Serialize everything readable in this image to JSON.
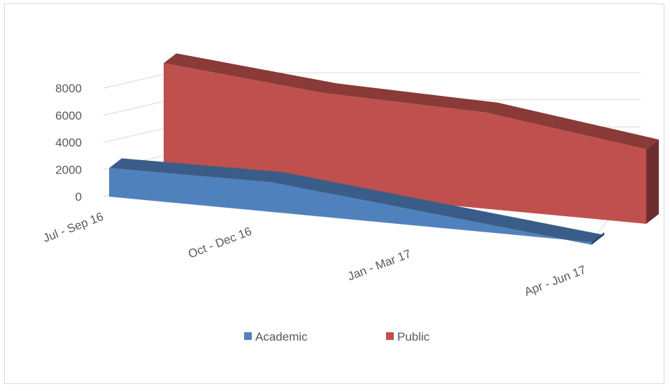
{
  "chart_data": {
    "type": "area",
    "view": "3d",
    "categories": [
      "Jul - Sep 16",
      "Oct - Dec 16",
      "Jan - Mar 17",
      "Apr - Jun 17"
    ],
    "series": [
      {
        "name": "Academic",
        "values": [
          2100,
          2200,
          1000,
          -200
        ],
        "color": "#4f81bd"
      },
      {
        "name": "Public",
        "values": [
          8500,
          7400,
          7100,
          5500
        ],
        "color": "#c0504d"
      }
    ],
    "yticks": [
      0,
      2000,
      4000,
      6000,
      8000
    ],
    "ylim": [
      0,
      8000
    ],
    "grid": true,
    "legend_position": "bottom"
  }
}
